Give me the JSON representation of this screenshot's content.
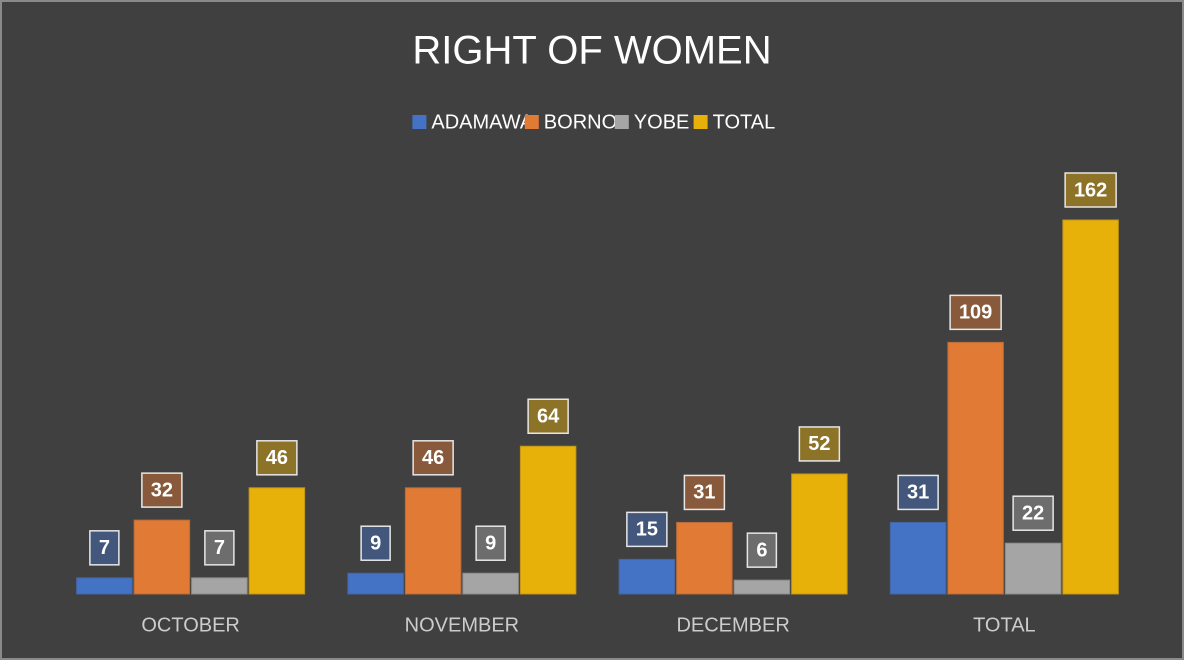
{
  "chart_data": {
    "type": "bar",
    "title": "RIGHT OF WOMEN",
    "categories": [
      "OCTOBER",
      "NOVEMBER",
      "DECEMBER",
      "TOTAL"
    ],
    "series": [
      {
        "name": "ADAMAWA",
        "color": "#4472c4",
        "values": [
          7,
          9,
          15,
          31
        ]
      },
      {
        "name": "BORNO",
        "color": "#e07a35",
        "values": [
          32,
          46,
          31,
          109
        ]
      },
      {
        "name": "YOBE",
        "color": "#a5a5a5",
        "values": [
          7,
          9,
          6,
          22
        ]
      },
      {
        "name": "TOTAL",
        "color": "#e8b10a",
        "values": [
          46,
          64,
          52,
          162
        ]
      }
    ],
    "legend": "top"
  }
}
